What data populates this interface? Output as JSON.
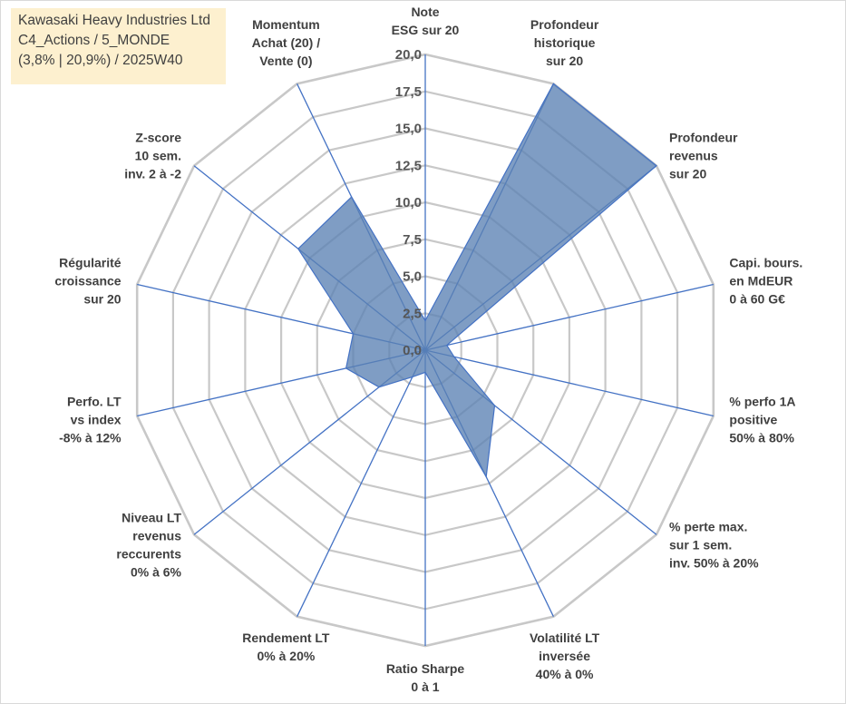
{
  "title_box": {
    "line1": "Kawasaki Heavy Industries Ltd",
    "line2": "C4_Actions / 5_MONDE",
    "line3": "(3,8% | 20,9%) / 2025W40"
  },
  "colors": {
    "fill": "#5b82b3",
    "stroke": "#4472c4",
    "grid": "#c8c8c8",
    "title_bg": "#fdf0cf"
  },
  "chart_data": {
    "type": "radar",
    "range": [
      0,
      20
    ],
    "tick_step": 2.5,
    "tick_labels": [
      "0,0",
      "2,5",
      "5,0",
      "7,5",
      "10,0",
      "12,5",
      "15,0",
      "17,5",
      "20,0"
    ],
    "grid": true,
    "axes": [
      {
        "label": [
          "Note",
          "ESG sur 20"
        ],
        "value": 2.0
      },
      {
        "label": [
          "Profondeur",
          "historique",
          "sur 20"
        ],
        "value": 20.0
      },
      {
        "label": [
          "Profondeur",
          "revenus",
          "sur 20"
        ],
        "value": 20.0
      },
      {
        "label": [
          "Capi. bours.",
          "en MdEUR",
          "0 à 60 G€"
        ],
        "value": 1.5
      },
      {
        "label": [
          "% perfo 1A",
          "positive",
          "50% à 80%"
        ],
        "value": 2.0
      },
      {
        "label": [
          "% perte max.",
          "sur 1 sem.",
          "inv. 50% à 20%"
        ],
        "value": 6.0
      },
      {
        "label": [
          "Volatilité LT",
          "inversée",
          "40% à 0%"
        ],
        "value": 9.5
      },
      {
        "label": [
          "Ratio Sharpe",
          "0 à 1"
        ],
        "value": 1.5
      },
      {
        "label": [
          "Rendement LT",
          "0% à 20%"
        ],
        "value": 2.0
      },
      {
        "label": [
          "Niveau LT",
          "revenus",
          "reccurents",
          "0% à 6%"
        ],
        "value": 4.0
      },
      {
        "label": [
          "Perfo. LT",
          "vs index",
          "-8% à 12%"
        ],
        "value": 5.5
      },
      {
        "label": [
          "Régularité",
          "croissance",
          "sur 20"
        ],
        "value": 5.0
      },
      {
        "label": [
          "Z-score",
          "10 sem.",
          "inv. 2 à -2"
        ],
        "value": 11.0
      },
      {
        "label": [
          "Momentum",
          "Achat (20) /",
          "Vente (0)"
        ],
        "value": 11.5
      }
    ]
  }
}
